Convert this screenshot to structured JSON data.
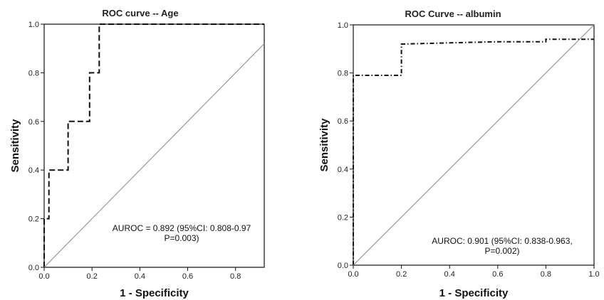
{
  "chart_data": [
    {
      "type": "line",
      "title": "ROC curve -- Age",
      "xlabel": "1 - Specificity",
      "ylabel": "Sensitivity",
      "xlim": [
        0,
        0.92
      ],
      "ylim": [
        0,
        1.0
      ],
      "xticks": [
        "0.0",
        "0.2",
        "0.4",
        "0.6",
        "0.8"
      ],
      "yticks": [
        "0.0",
        "0.2",
        "0.4",
        "0.6",
        "0.8",
        "1.0"
      ],
      "grid": false,
      "series": [
        {
          "style": "dashed",
          "color": "#111111",
          "x": [
            0,
            0,
            0.02,
            0.02,
            0.1,
            0.1,
            0.19,
            0.19,
            0.23,
            0.23,
            0.92
          ],
          "y": [
            0,
            0.2,
            0.2,
            0.4,
            0.4,
            0.6,
            0.6,
            0.8,
            0.8,
            1.0,
            1.0
          ]
        },
        {
          "style": "reference",
          "color": "#888888",
          "x": [
            0,
            0.92
          ],
          "y": [
            0,
            0.92
          ]
        }
      ],
      "annotation": [
        "AUROC = 0.892 (95%CI: 0.808-0.97",
        "P=0.003)"
      ]
    },
    {
      "type": "line",
      "title": "ROC Curve -- albumin",
      "xlabel": "1 - Specificity",
      "ylabel": "Sensitivity",
      "xlim": [
        0,
        1.0
      ],
      "ylim": [
        0,
        1.0
      ],
      "xticks": [
        "0.0",
        "0.2",
        "0.4",
        "0.6",
        "0.8",
        "1.0"
      ],
      "yticks": [
        "0.0",
        "0.2",
        "0.4",
        "0.6",
        "0.8",
        "1.0"
      ],
      "grid": false,
      "series": [
        {
          "style": "dash-dot",
          "color": "#111111",
          "x": [
            0,
            0,
            0.2,
            0.2,
            0.4,
            0.6,
            0.8,
            0.8,
            1.0
          ],
          "y": [
            0,
            0.79,
            0.79,
            0.92,
            0.925,
            0.93,
            0.93,
            0.94,
            0.94
          ]
        },
        {
          "style": "reference",
          "color": "#888888",
          "x": [
            0,
            1.0
          ],
          "y": [
            0,
            1.0
          ]
        }
      ],
      "annotation": [
        "AUROC: 0.901 (95%CI: 0.838-0.963,",
        "P=0.002)"
      ]
    }
  ]
}
